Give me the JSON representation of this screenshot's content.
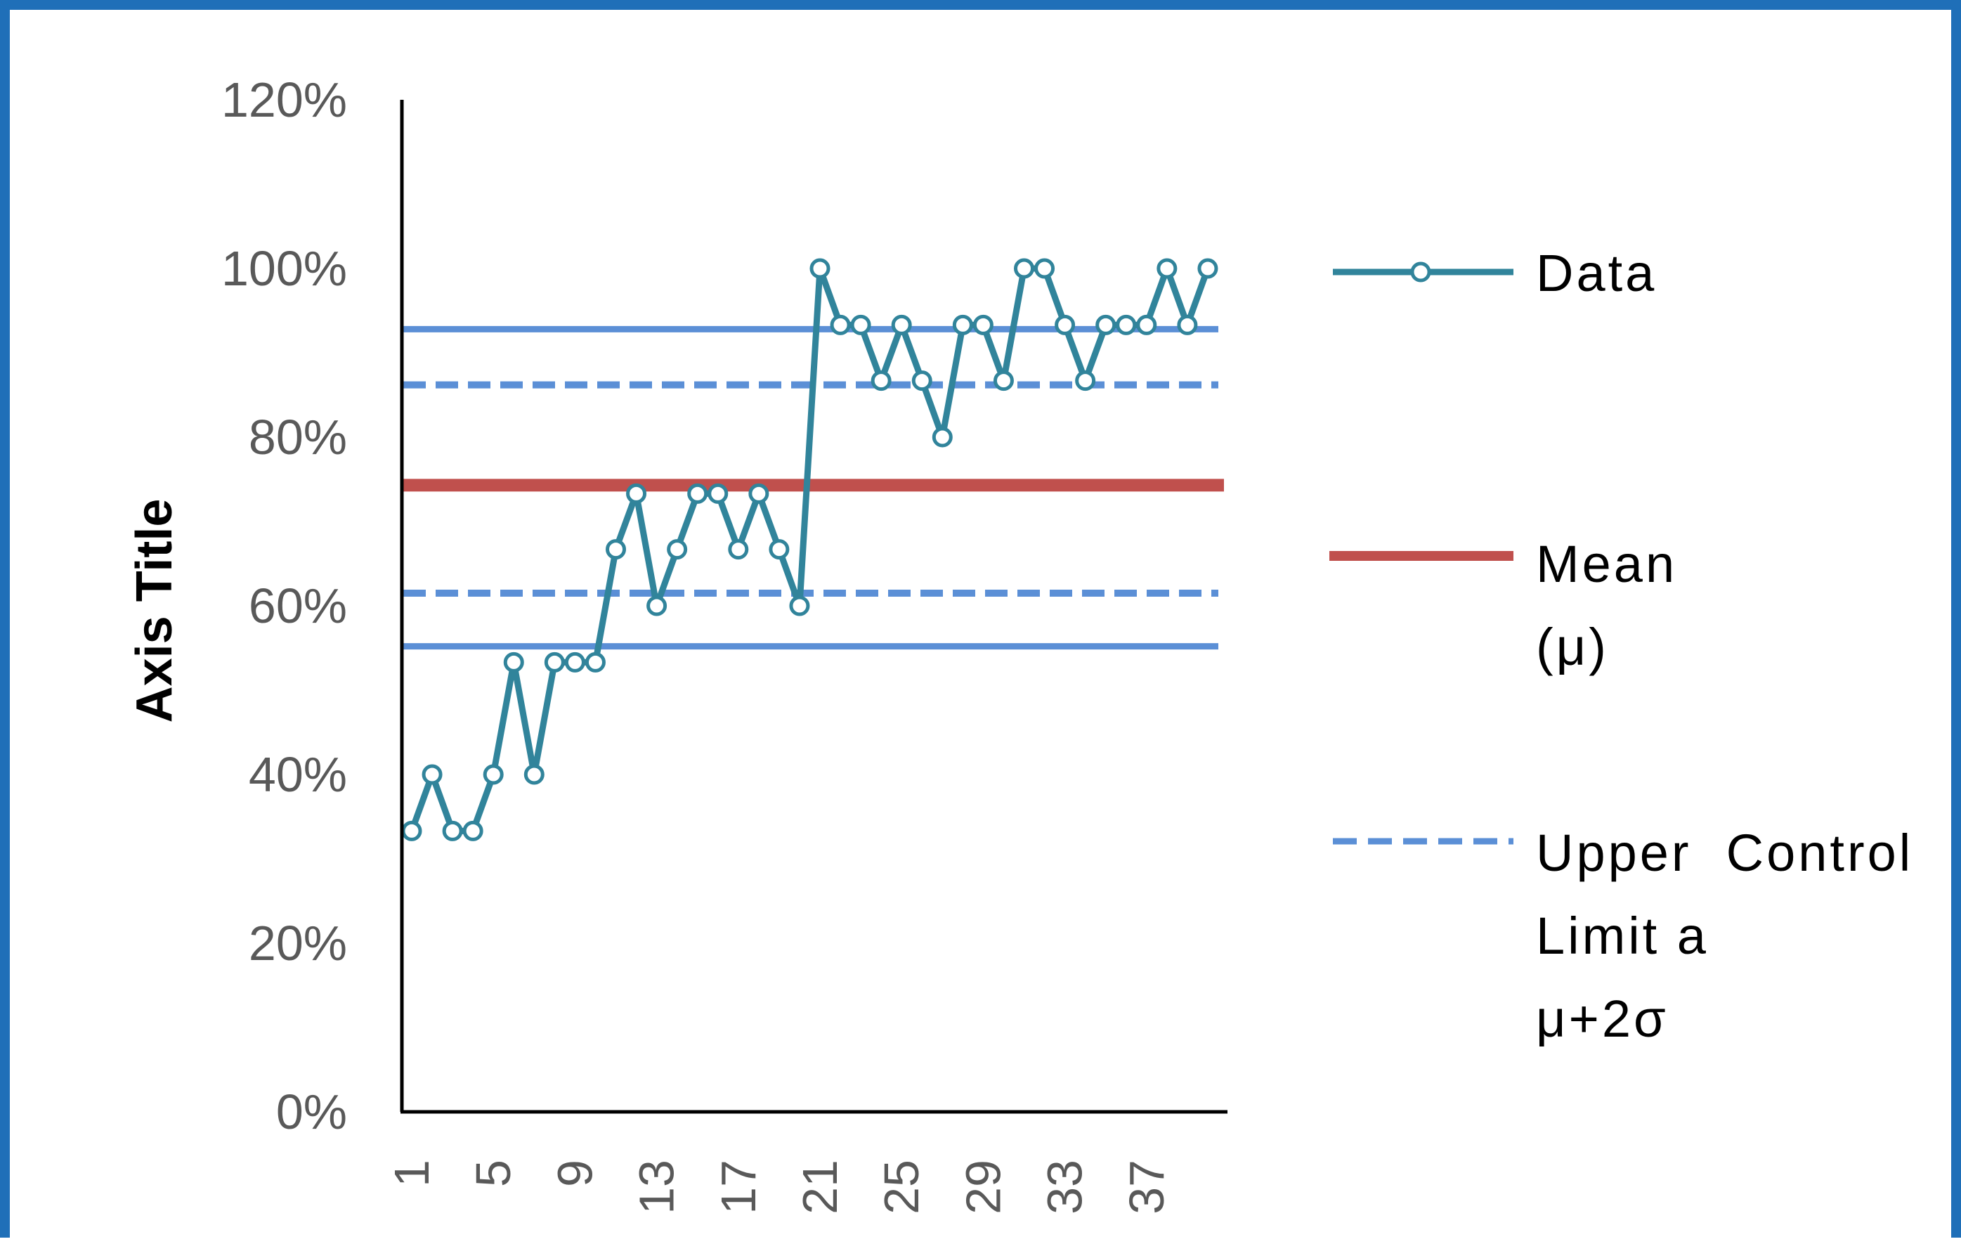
{
  "chart_data": {
    "type": "line",
    "title": "",
    "xlabel": "",
    "ylabel": "Axis Title",
    "ylim": [
      0,
      1.2
    ],
    "yticks": [
      "0%",
      "20%",
      "40%",
      "60%",
      "80%",
      "100%",
      "120%"
    ],
    "x": [
      1,
      2,
      3,
      4,
      5,
      6,
      7,
      8,
      9,
      10,
      11,
      12,
      13,
      14,
      15,
      16,
      17,
      18,
      19,
      20,
      21,
      22,
      23,
      24,
      25,
      26,
      27,
      28,
      29,
      30,
      31,
      32,
      33,
      34,
      35,
      36,
      37,
      38,
      39,
      40
    ],
    "xtick_labels": [
      "1",
      "5",
      "9",
      "13",
      "17",
      "21",
      "25",
      "29",
      "33",
      "37"
    ],
    "xtick_positions": [
      1,
      5,
      9,
      13,
      17,
      21,
      25,
      29,
      33,
      37
    ],
    "series": [
      {
        "name": "Data",
        "style": "line-marker",
        "color": "#31849b",
        "values": [
          0.333,
          0.4,
          0.333,
          0.333,
          0.4,
          0.533,
          0.4,
          0.533,
          0.533,
          0.533,
          0.667,
          0.733,
          0.6,
          0.667,
          0.733,
          0.733,
          0.667,
          0.733,
          0.667,
          0.6,
          1.0,
          0.933,
          0.933,
          0.867,
          0.933,
          0.867,
          0.8,
          0.933,
          0.933,
          0.867,
          1.0,
          1.0,
          0.933,
          0.867,
          0.933,
          0.933,
          0.933,
          1.0,
          0.933,
          1.0
        ]
      }
    ],
    "reference_lines": [
      {
        "name": "Mean (μ)",
        "value": 0.743,
        "color": "#c0504d",
        "style": "solid-thick"
      },
      {
        "name": "Upper Control Limit a μ+2σ",
        "value": 0.862,
        "color": "#5b8fd6",
        "style": "dashed"
      },
      {
        "name": "",
        "value": 0.615,
        "color": "#5b8fd6",
        "style": "dashed"
      },
      {
        "name": "",
        "value": 0.928,
        "color": "#5b8fd6",
        "style": "solid"
      },
      {
        "name": "",
        "value": 0.552,
        "color": "#5b8fd6",
        "style": "solid"
      }
    ],
    "legend_placement": "right",
    "grid": false
  },
  "legend": {
    "data_label": "Data",
    "mean_line1": "Mean",
    "mean_line2": "(μ)",
    "ucl_line1": "Upper  Control",
    "ucl_line2": "Limit a",
    "ucl_line3": "μ+2σ"
  }
}
